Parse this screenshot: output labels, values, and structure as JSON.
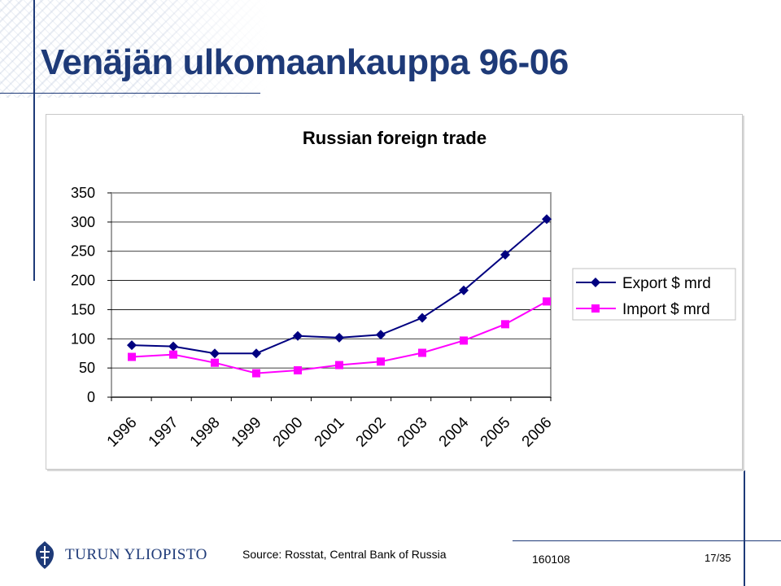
{
  "slide": {
    "title": "Venäjän ulkomaankauppa 96-06"
  },
  "footer": {
    "logo_text": "TURUN YLIOPISTO",
    "source": "Source: Rosstat, Central Bank of Russia",
    "code": "160108",
    "page": "17/35"
  },
  "chart_data": {
    "type": "line",
    "title": "Russian foreign trade",
    "x": [
      "1996",
      "1997",
      "1998",
      "1999",
      "2000",
      "2001",
      "2002",
      "2003",
      "2004",
      "2005",
      "2006"
    ],
    "series": [
      {
        "name": "Export $ mrd",
        "values": [
          89,
          87,
          75,
          75,
          105,
          102,
          107,
          136,
          183,
          244,
          305
        ],
        "color": "#000080",
        "marker": "diamond"
      },
      {
        "name": "Import $ mrd",
        "values": [
          69,
          73,
          59,
          41,
          46,
          55,
          61,
          76,
          97,
          125,
          164
        ],
        "color": "#ff00ff",
        "marker": "square"
      }
    ],
    "yticks": [
      0,
      50,
      100,
      150,
      200,
      250,
      300,
      350
    ],
    "ylim": [
      0,
      350
    ],
    "grid": true,
    "legend": "right"
  }
}
